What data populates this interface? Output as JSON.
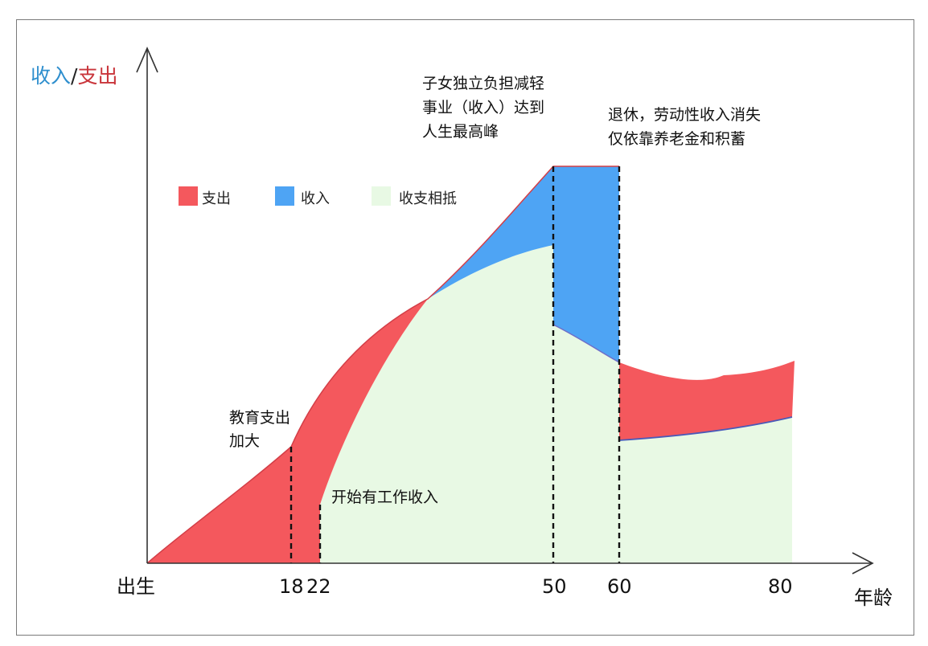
{
  "title": {
    "income": "收入",
    "slash": "/",
    "expense": "支出"
  },
  "x_axis": {
    "label": "年龄",
    "ticks": [
      "出生",
      "18",
      "22",
      "50",
      "60",
      "80"
    ]
  },
  "legend": [
    {
      "label": "支出",
      "color": "#f4585d"
    },
    {
      "label": "收入",
      "color": "#4ea4f4"
    },
    {
      "label": "收支相抵",
      "color": "#e8f9e4"
    }
  ],
  "annotations": {
    "education": [
      "教育支出",
      "加大"
    ],
    "start_work": "开始有工作收入",
    "peak": [
      "子女独立负担减轻",
      "事业（收入）达到",
      "人生最高峰"
    ],
    "retire": [
      "退休，劳动性收入消失",
      "仅依靠养老金和积蓄"
    ]
  },
  "colors": {
    "expense": "#f4585d",
    "income": "#4ea4f4",
    "balance": "#e8f9e4",
    "title_income": "#2f8fce",
    "title_expense": "#c9353b"
  }
}
